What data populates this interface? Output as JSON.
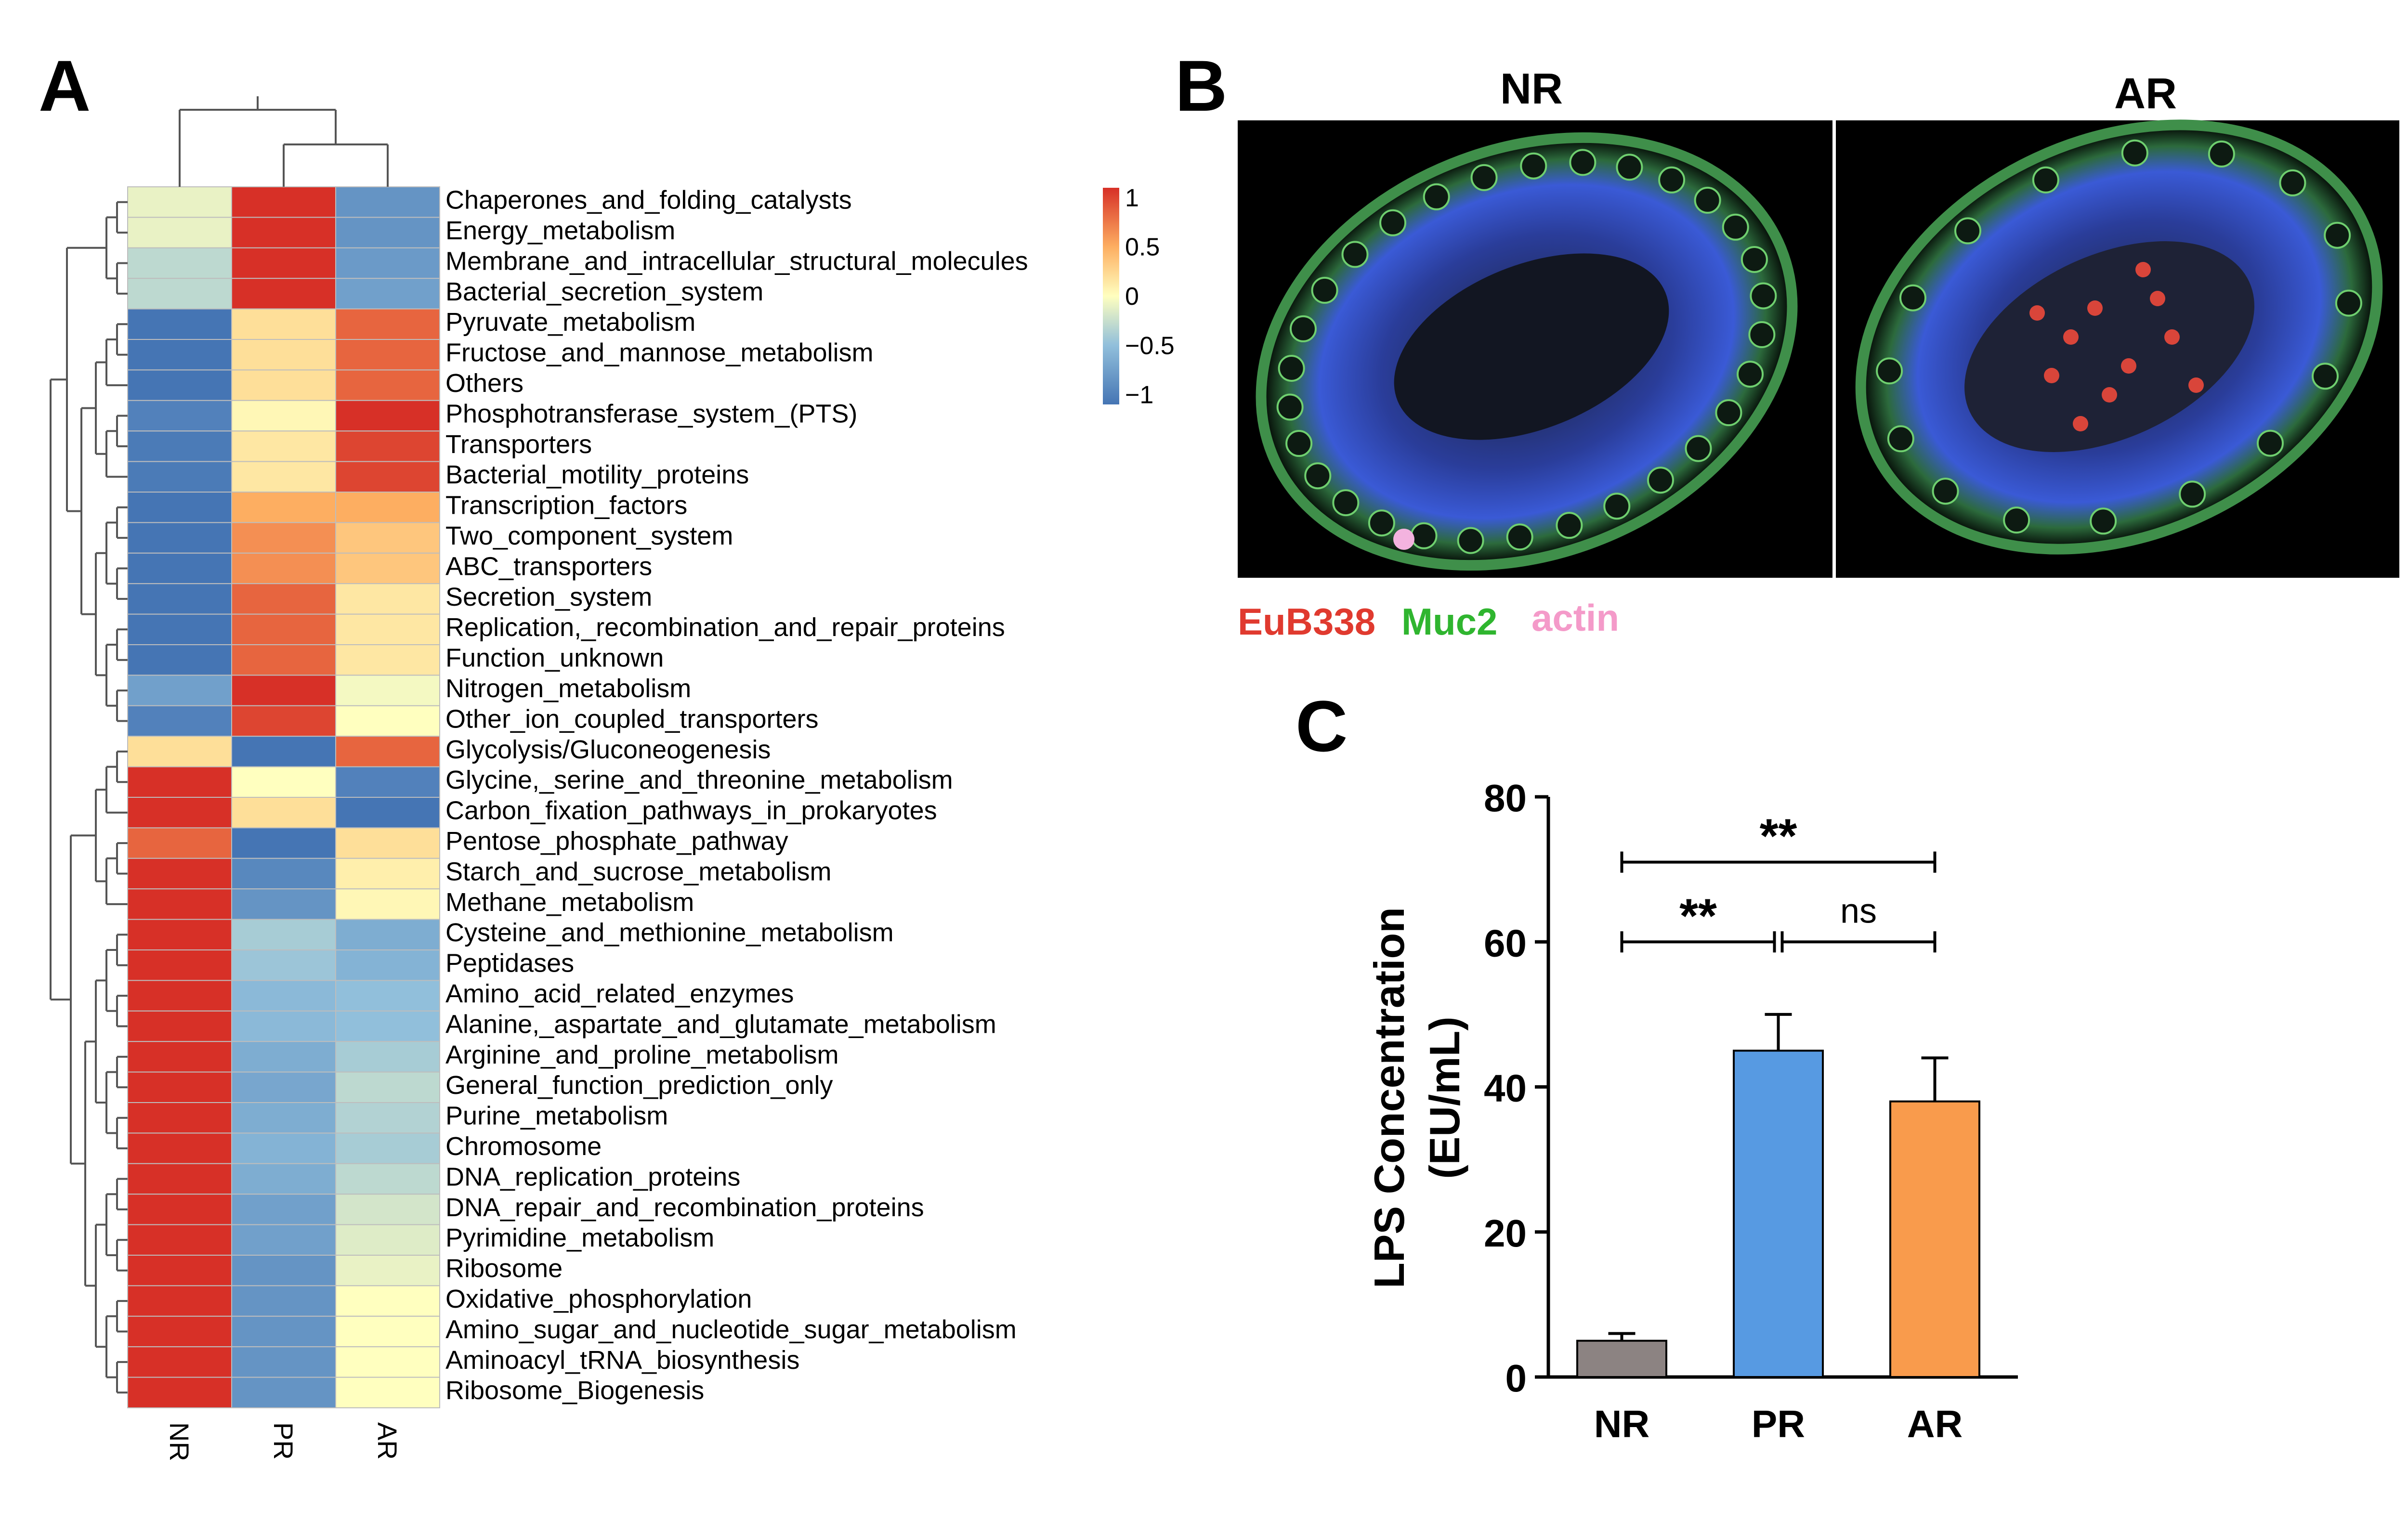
{
  "panels": {
    "A": {
      "letter": "A",
      "chart_data": {
        "type": "heatmap",
        "columns": [
          "NR",
          "PR",
          "AR"
        ],
        "rows": [
          "Chaperones_and_folding_catalysts",
          "Energy_metabolism",
          "Membrane_and_intracellular_structural_molecules",
          "Bacterial_secretion_system",
          "Pyruvate_metabolism",
          "Fructose_and_mannose_metabolism",
          "Others",
          "Phosphotransferase_system_(PTS)",
          "Transporters",
          "Bacterial_motility_proteins",
          "Transcription_factors",
          "Two_component_system",
          "ABC_transporters",
          "Secretion_system",
          "Replication,_recombination_and_repair_proteins",
          "Function_unknown",
          "Nitrogen_metabolism",
          "Other_ion_coupled_transporters",
          "Glycolysis/Gluconeogenesis",
          "Glycine,_serine_and_threonine_metabolism",
          "Carbon_fixation_pathways_in_prokaryotes",
          "Pentose_phosphate_pathway",
          "Starch_and_sucrose_metabolism",
          "Methane_metabolism",
          "Cysteine_and_methionine_metabolism",
          "Peptidases",
          "Amino_acid_related_enzymes",
          "Alanine,_aspartate_and_glutamate_metabolism",
          "Arginine_and_proline_metabolism",
          "General_function_prediction_only",
          "Purine_metabolism",
          "Chromosome",
          "DNA_replication_proteins",
          "DNA_repair_and_recombination_proteins",
          "Pyrimidine_metabolism",
          "Ribosome",
          "Oxidative_phosphorylation",
          "Amino_sugar_and_nucleotide_sugar_metabolism",
          "Aminoacyl_tRNA_biosynthesis",
          "Ribosome_Biogenesis"
        ],
        "values": [
          [
            -0.1,
            1.1,
            -0.85
          ],
          [
            -0.1,
            1.1,
            -0.85
          ],
          [
            -0.3,
            1.1,
            -0.8
          ],
          [
            -0.3,
            1.1,
            -0.75
          ],
          [
            -1.1,
            0.2,
            0.85
          ],
          [
            -1.1,
            0.2,
            0.85
          ],
          [
            -1.1,
            0.2,
            0.85
          ],
          [
            -1.0,
            0.05,
            1.1
          ],
          [
            -1.05,
            0.15,
            1.0
          ],
          [
            -1.05,
            0.15,
            1.0
          ],
          [
            -1.1,
            0.5,
            0.5
          ],
          [
            -1.1,
            0.65,
            0.35
          ],
          [
            -1.1,
            0.65,
            0.35
          ],
          [
            -1.1,
            0.85,
            0.15
          ],
          [
            -1.1,
            0.85,
            0.15
          ],
          [
            -1.1,
            0.85,
            0.15
          ],
          [
            -0.75,
            1.1,
            -0.05
          ],
          [
            -1.0,
            1.0,
            0.0
          ],
          [
            0.2,
            -1.1,
            0.85
          ],
          [
            1.1,
            0.0,
            -1.0
          ],
          [
            1.1,
            0.2,
            -1.1
          ],
          [
            0.85,
            -1.1,
            0.2
          ],
          [
            1.1,
            -0.95,
            0.1
          ],
          [
            1.1,
            -0.85,
            0.05
          ],
          [
            1.1,
            -0.4,
            -0.65
          ],
          [
            1.1,
            -0.45,
            -0.6
          ],
          [
            1.1,
            -0.55,
            -0.5
          ],
          [
            1.1,
            -0.55,
            -0.5
          ],
          [
            1.1,
            -0.65,
            -0.4
          ],
          [
            1.1,
            -0.7,
            -0.3
          ],
          [
            1.1,
            -0.65,
            -0.35
          ],
          [
            1.1,
            -0.6,
            -0.4
          ],
          [
            1.1,
            -0.65,
            -0.3
          ],
          [
            1.1,
            -0.75,
            -0.2
          ],
          [
            1.1,
            -0.75,
            -0.15
          ],
          [
            1.1,
            -0.85,
            -0.1
          ],
          [
            1.1,
            -0.85,
            0.0
          ],
          [
            1.1,
            -0.85,
            0.0
          ],
          [
            1.1,
            -0.85,
            0.0
          ],
          [
            1.1,
            -0.85,
            0.0
          ]
        ],
        "color_scale": {
          "range": [
            -1.1,
            1.1
          ],
          "stops": [
            {
              "value": -1.1,
              "color": "#4575b4"
            },
            {
              "value": -0.5,
              "color": "#91bfdb"
            },
            {
              "value": 0,
              "color": "#ffffbf"
            },
            {
              "value": 0.5,
              "color": "#fdae61"
            },
            {
              "value": 1.1,
              "color": "#d73027"
            }
          ],
          "ticks": [
            "1",
            "0.5",
            "0",
            "−0.5",
            "−1"
          ],
          "tick_values": [
            1,
            0.5,
            0,
            -0.5,
            -1
          ]
        },
        "col_dendrogram": "NR | (PR, AR)",
        "row_dendrogram": "hierarchical clustering (rows 1-18 vs 19-40)"
      }
    },
    "B": {
      "letter": "B",
      "images": [
        {
          "label": "NR",
          "icon": "villus-crosssection-image"
        },
        {
          "label": "AR",
          "icon": "villus-crosssection-image"
        }
      ],
      "legend": [
        {
          "text": "EuB338",
          "color": "#e03a2f"
        },
        {
          "text": "Muc2",
          "color": "#2fb52f"
        },
        {
          "text": "actin",
          "color": "#f49ac9"
        }
      ]
    },
    "C": {
      "letter": "C",
      "chart_data": {
        "type": "bar",
        "categories": [
          "NR",
          "PR",
          "AR"
        ],
        "values": [
          5,
          45,
          38
        ],
        "errors": [
          1,
          5,
          6
        ],
        "colors": [
          "#8c8382",
          "#579ae2",
          "#f99b4c"
        ],
        "ylabel_line1": "LPS Concentration",
        "ylabel_line2": "(EU/mL)",
        "ylim": [
          0,
          80
        ],
        "yticks": [
          0,
          20,
          40,
          60,
          80
        ],
        "significance": [
          {
            "from": "NR",
            "to": "AR",
            "label": "**",
            "y": 71
          },
          {
            "from": "NR",
            "to": "PR",
            "label": "**",
            "y": 60
          },
          {
            "from": "PR",
            "to": "AR",
            "label": "ns",
            "y": 60
          }
        ]
      }
    }
  }
}
